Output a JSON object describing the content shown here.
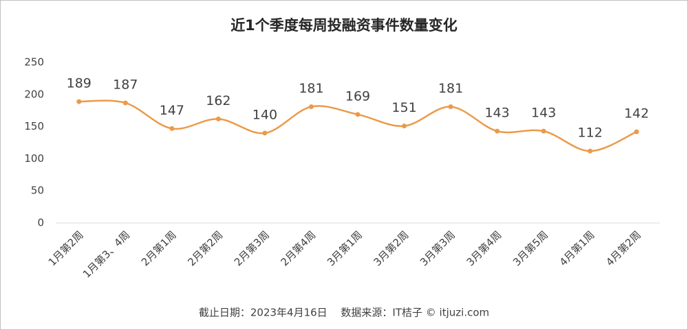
{
  "chart_data": {
    "type": "line",
    "title": "近1个季度每周投融资事件数量变化",
    "categories": [
      "1月第2周",
      "1月第3、4周",
      "2月第1周",
      "2月第2周",
      "2月第3周",
      "2月第4周",
      "3月第1周",
      "3月第2周",
      "3月第3周",
      "3月第4周",
      "3月第5周",
      "4月第1周",
      "4月第2周"
    ],
    "values": [
      189,
      187,
      147,
      162,
      140,
      181,
      169,
      151,
      181,
      143,
      143,
      112,
      142
    ],
    "color": "#eb9a48",
    "smooth": true,
    "ylim": [
      0,
      250
    ],
    "yticks": [
      0,
      50,
      100,
      150,
      200,
      250
    ],
    "footer": "截止日期：2023年4月16日　 数据来源：IT桔子 © itjuzi.com"
  }
}
